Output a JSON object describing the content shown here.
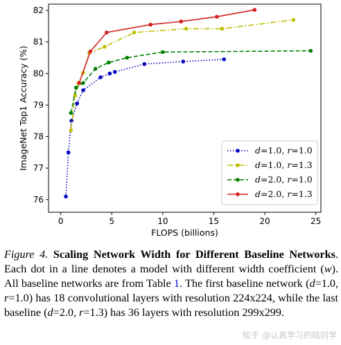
{
  "chart_data": {
    "type": "line",
    "xlabel": "FLOPS (billions)",
    "ylabel": "ImageNet Top1 Accuracy (%)",
    "xlim": [
      -1.2,
      25.5
    ],
    "ylim": [
      75.6,
      82.2
    ],
    "xticks": [
      0,
      5,
      10,
      15,
      20,
      25
    ],
    "yticks": [
      76,
      77,
      78,
      79,
      80,
      81,
      82
    ],
    "grid": false,
    "legend_position": "lower-right",
    "series": [
      {
        "legend_prefix_var": "d",
        "legend_prefix_val": "=1.0, ",
        "legend_suffix_var": "r",
        "legend_suffix_val": "=1.0",
        "color": "#0000bf",
        "dash": "dotted",
        "x": [
          0.5,
          0.75,
          1.05,
          1.6,
          2.2,
          3.9,
          4.8,
          5.3,
          8.2,
          12,
          16
        ],
        "y": [
          76.1,
          77.5,
          78.5,
          79.05,
          79.47,
          79.88,
          80.0,
          80.05,
          80.3,
          80.38,
          80.45
        ]
      },
      {
        "legend_prefix_var": "d",
        "legend_prefix_val": "=1.0, ",
        "legend_suffix_var": "r",
        "legend_suffix_val": "=1.3",
        "color": "#bfbf00",
        "dash": "dashdot",
        "x": [
          1.0,
          1.4,
          1.75,
          2.2,
          2.8,
          4.3,
          7.2,
          12.3,
          15.8,
          22.8
        ],
        "y": [
          78.2,
          79.3,
          79.7,
          80.02,
          80.65,
          80.85,
          81.3,
          81.42,
          81.42,
          81.7
        ]
      },
      {
        "legend_prefix_var": "d",
        "legend_prefix_val": "=2.0, ",
        "legend_suffix_var": "r",
        "legend_suffix_val": "=1.0",
        "color": "#008000",
        "dash": "dashed",
        "x": [
          1.0,
          1.5,
          2.2,
          3.4,
          4.7,
          6.5,
          10,
          24.5
        ],
        "y": [
          78.75,
          79.55,
          79.7,
          80.15,
          80.35,
          80.5,
          80.68,
          80.72
        ]
      },
      {
        "legend_prefix_var": "d",
        "legend_prefix_val": "=2.0, ",
        "legend_suffix_var": "r",
        "legend_suffix_val": "=1.3",
        "color": "#d62020",
        "dash": "solid",
        "x": [
          1.8,
          2.9,
          4.5,
          8.8,
          11.8,
          15.3,
          19.0
        ],
        "y": [
          79.7,
          80.7,
          81.3,
          81.55,
          81.65,
          81.8,
          82.02
        ]
      }
    ]
  },
  "caption": {
    "label": "Figure 4.",
    "title": "Scaling Network Width for Different Baseline Networks",
    "s1": ". Each dot in a line denotes a model with different width coefficient (",
    "s1_var": "w",
    "s2": "). All baseline networks are from Table ",
    "table_ref": "1",
    "s3": ". The first baseline network (",
    "p1_var_a": "d",
    "p1_val_a": "=1.0, ",
    "p1_var_b": "r",
    "p1_val_b": "=1.0",
    "s4": ") has 18 convolutional layers with resolution 224x224, while the last baseline (",
    "p2_var_a": "d",
    "p2_val_a": "=2.0, ",
    "p2_var_b": "r",
    "p2_val_b": "=1.3",
    "s5": ") has 36 layers with resolution 299x299."
  },
  "watermark": "知乎 @认真学习的陆同学"
}
